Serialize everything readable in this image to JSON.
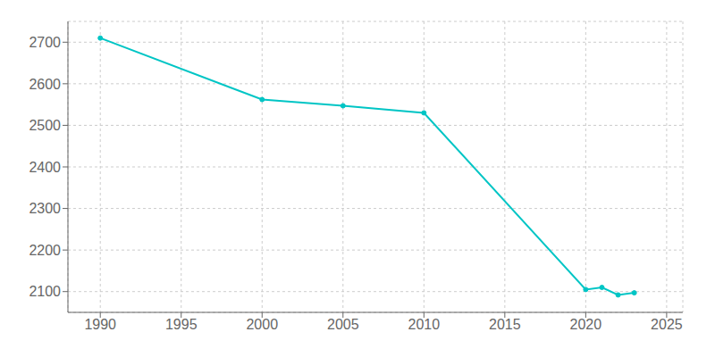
{
  "chart_data": {
    "type": "line",
    "x": [
      1990,
      2000,
      2005,
      2010,
      2020,
      2021,
      2022,
      2023
    ],
    "values": [
      2710,
      2562,
      2547,
      2530,
      2105,
      2110,
      2092,
      2097
    ],
    "color": "#00C5C5",
    "marker": "circle",
    "xlim": [
      1988,
      2026
    ],
    "ylim": [
      2050,
      2750
    ],
    "xticks": [
      1990,
      1995,
      2000,
      2005,
      2010,
      2015,
      2020,
      2025
    ],
    "yticks": [
      2100,
      2200,
      2300,
      2400,
      2500,
      2600,
      2700
    ],
    "grid": true
  }
}
